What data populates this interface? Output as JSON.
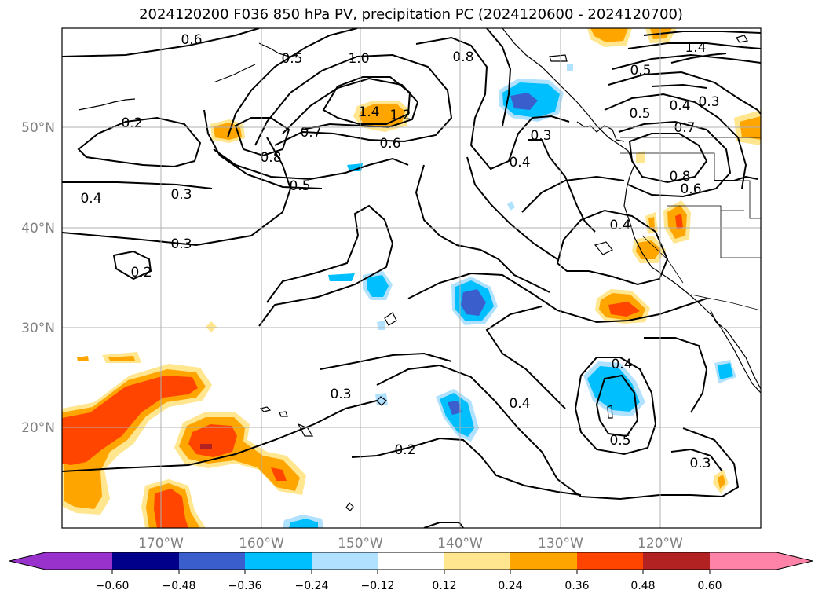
{
  "title": "2024120200 F036 850 hPa PV, precipitation PC (2024120600 - 2024120700)",
  "colors": {
    "land": "#000000",
    "grid": "#b0b0b0",
    "contour": "#000000",
    "frame": "#000000"
  },
  "map": {
    "lat_labels": [
      "50°N",
      "40°N",
      "30°N",
      "20°N"
    ],
    "lon_labels": [
      "170°W",
      "160°W",
      "150°W",
      "140°W",
      "130°W",
      "120°W"
    ],
    "contour_labels": [
      "0.6",
      "0.5",
      "1.0",
      "0.8",
      "1.4",
      "1.2",
      "0.2",
      "0.7",
      "0.6",
      "0.8",
      "0.5",
      "0.3",
      "0.4",
      "0.3",
      "0.2",
      "0.3",
      "0.4",
      "0.3",
      "0.4",
      "0.2",
      "0.4",
      "0.5",
      "0.3",
      "0.5",
      "0.4",
      "0.5",
      "0.7",
      "0.8",
      "0.6",
      "0.4",
      "0.3",
      "1.4"
    ]
  },
  "colorbar": {
    "ticks": [
      "−0.60",
      "−0.48",
      "−0.36",
      "−0.24",
      "−0.12",
      "0.12",
      "0.24",
      "0.36",
      "0.48",
      "0.60"
    ],
    "bin_colors": [
      "#9932cc",
      "#00008b",
      "#3a5fcd",
      "#00bfff",
      "#b0e2ff",
      "#ffffff",
      "#ffe68f",
      "#ffa500",
      "#ff4500",
      "#b22222",
      "#ff83a8"
    ]
  }
}
